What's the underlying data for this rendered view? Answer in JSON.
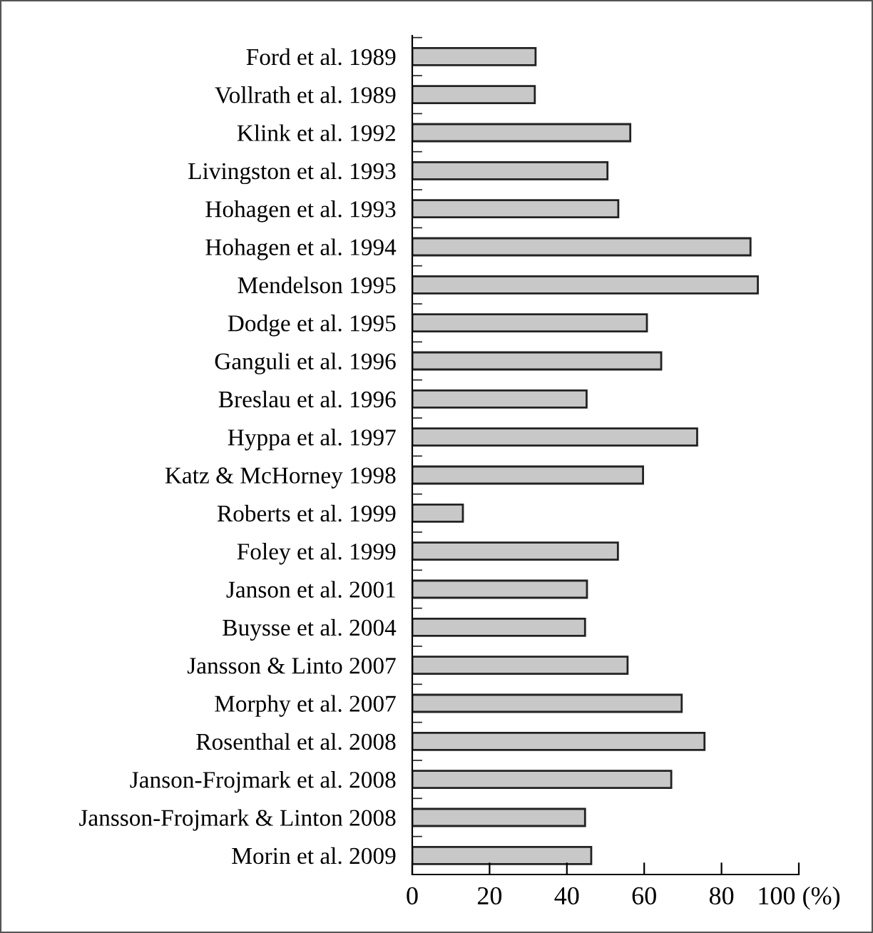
{
  "chart_data": {
    "type": "bar",
    "orientation": "horizontal",
    "categories": [
      "Ford et al. 1989",
      "Vollrath et al. 1989",
      "Klink et al. 1992",
      "Livingston et al. 1993",
      "Hohagen et al. 1993",
      "Hohagen et al. 1994",
      "Mendelson 1995",
      "Dodge et al. 1995",
      "Ganguli et al. 1996",
      "Breslau et al. 1996",
      "Hyppa et al. 1997",
      "Katz & McHorney 1998",
      "Roberts et al. 1999",
      "Foley et al. 1999",
      "Janson et al. 2001",
      "Buysse et al. 2004",
      "Jansson & Linto 2007",
      "Morphy et al. 2007",
      "Rosenthal et al. 2008",
      "Janson-Frojmark et al. 2008",
      "Jansson-Frojmark & Linton 2008",
      "Morin et al. 2009"
    ],
    "values": [
      31.9,
      31.7,
      56.4,
      50.5,
      53.3,
      87.5,
      89.4,
      60.7,
      64.4,
      45.1,
      73.7,
      59.7,
      13.1,
      53.2,
      45.2,
      44.7,
      55.7,
      69.7,
      75.6,
      67.0,
      44.7,
      46.3
    ],
    "color": "#c8c8c8",
    "xlim": [
      0,
      100
    ],
    "xticks": [
      0,
      20,
      40,
      60,
      80,
      {
        "value": 100,
        "label": "100 (%)"
      }
    ],
    "grid": false,
    "legend": false
  }
}
